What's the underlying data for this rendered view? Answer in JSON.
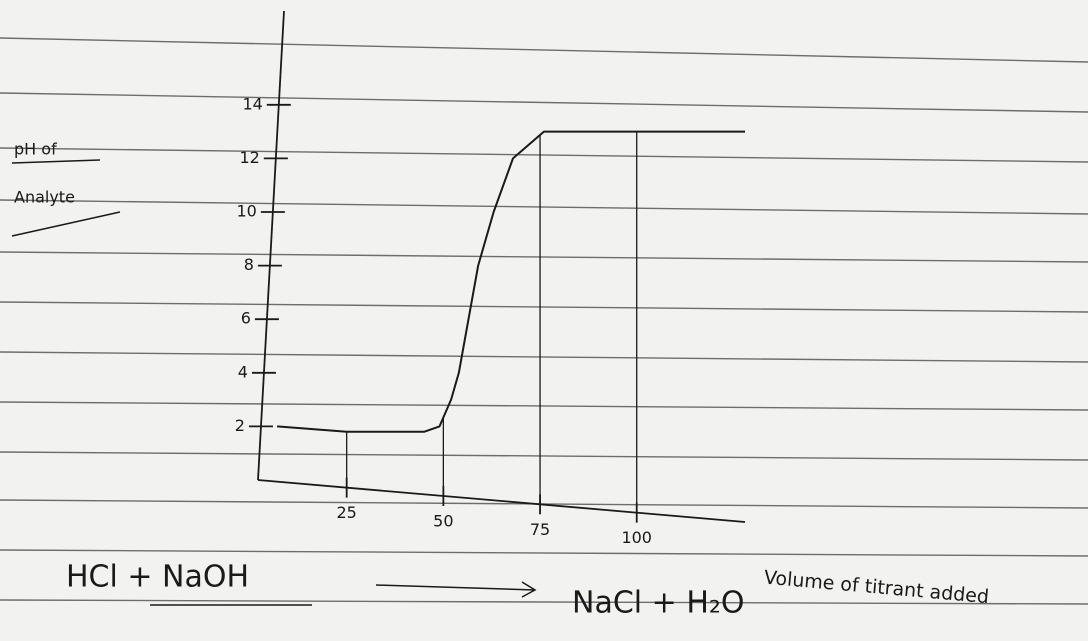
{
  "chart_data": {
    "type": "line",
    "y_label_lines": [
      "pH of",
      "Analyte"
    ],
    "x_label": "Volume of titrant added",
    "equation_left": "HCl + NaOH",
    "equation_right": "NaCl + H₂O",
    "x": [
      7,
      25,
      45,
      49,
      52,
      54,
      59,
      63,
      68,
      76,
      100,
      128
    ],
    "series": [
      {
        "color": "#1a1a1a",
        "values": [
          2,
          1.8,
          1.8,
          2,
          3,
          4,
          8,
          10,
          12,
          13,
          13,
          13
        ]
      }
    ],
    "xlim": [
      0,
      128
    ],
    "xticks": [
      25,
      50,
      75,
      100
    ],
    "ylim": [
      0,
      17.5
    ],
    "yticks": [
      2,
      4,
      6,
      8,
      10,
      12,
      14
    ]
  }
}
